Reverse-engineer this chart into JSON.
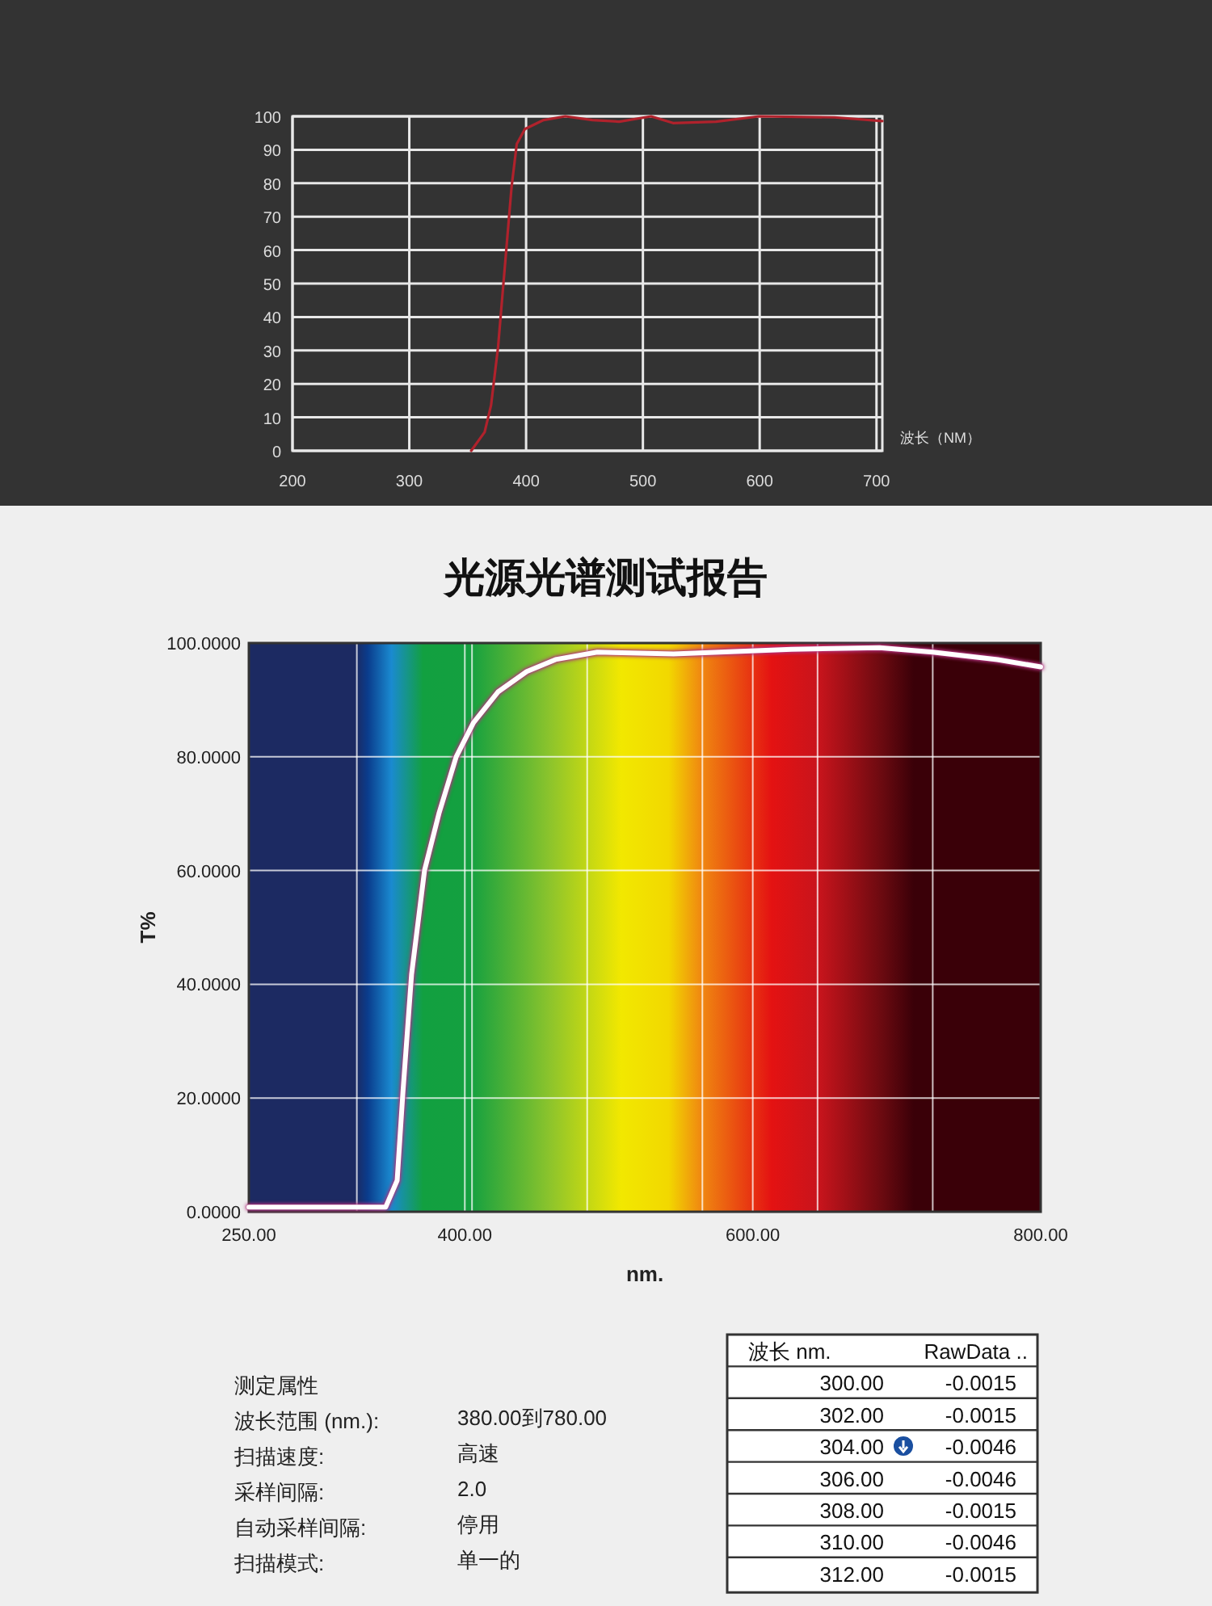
{
  "chart_data": [
    {
      "type": "line",
      "xlabel": "波长（NM）",
      "xlim": [
        200,
        705
      ],
      "ylim": [
        0,
        100
      ],
      "xticks": [
        200,
        300,
        400,
        500,
        600,
        700
      ],
      "yticks": [
        0,
        10,
        20,
        30,
        40,
        50,
        60,
        70,
        80,
        90,
        100
      ],
      "grid": true,
      "series": [
        {
          "color": "#b0222c",
          "x": [
            353,
            364.5,
            370,
            376,
            383,
            387.6,
            392,
            399,
            415,
            433.6,
            456.7,
            479.7,
            507,
            525.8,
            562.7,
            599.5,
            664,
            705
          ],
          "values": [
            0,
            5.6,
            13.6,
            31,
            60,
            79,
            91.7,
            96.2,
            98.9,
            100,
            98.9,
            98.4,
            100,
            98,
            98.4,
            100,
            99.7,
            98.6
          ]
        }
      ]
    },
    {
      "type": "line",
      "title": "光源光谱测试报告",
      "xlabel": "nm.",
      "ylabel": "T%",
      "xlim": [
        250,
        800
      ],
      "ylim": [
        0,
        100
      ],
      "xticks": [
        {
          "value": 250,
          "label": "250.00"
        },
        {
          "value": 325,
          "label": null
        },
        {
          "value": 400,
          "label": "400.00"
        },
        {
          "value": 405,
          "label": null
        },
        {
          "value": 485,
          "label": null
        },
        {
          "value": 565,
          "label": null
        },
        {
          "value": 600,
          "label": "600.00"
        },
        {
          "value": 645,
          "label": null
        },
        {
          "value": 725,
          "label": null
        },
        {
          "value": 800,
          "label": "800.00"
        }
      ],
      "yticks": [
        {
          "value": 0,
          "label": "0.0000"
        },
        {
          "value": 20,
          "label": "20.0000"
        },
        {
          "value": 40,
          "label": "40.0000"
        },
        {
          "value": 60,
          "label": "60.0000"
        },
        {
          "value": 80,
          "label": "80.0000"
        },
        {
          "value": 100,
          "label": "100.0000"
        }
      ],
      "grid": true,
      "series": [
        {
          "color": "#ffffff",
          "x": [
            250,
            345,
            353,
            357,
            363,
            372,
            382,
            394,
            406,
            423,
            443,
            463,
            492,
            545,
            627,
            688,
            725,
            770,
            800
          ],
          "values": [
            0.8,
            0.8,
            5.5,
            21,
            41.7,
            60,
            70,
            80,
            86,
            91.4,
            95,
            97.1,
            98.4,
            98.1,
            98.9,
            99.2,
            98.4,
            97.1,
            95.8
          ]
        }
      ]
    },
    {
      "type": "other",
      "annotations": [
        "测定属性",
        "波长范围 (nm.):",
        "380.00到780.00",
        "扫描速度:",
        "高速",
        "采样间隔:",
        "2.0",
        "自动采样间隔:",
        "停用",
        "扫描模式:",
        "单一的"
      ]
    },
    {
      "type": "heatmap",
      "ylabel": "波长 nm.",
      "categories": [
        "RawData .."
      ],
      "y_categories": [
        "300.00",
        "302.00",
        "304.00",
        "306.00",
        "308.00",
        "310.00",
        "312.00"
      ],
      "cells": [
        [
          -0.0015
        ],
        [
          -0.0015
        ],
        [
          -0.0046
        ],
        [
          -0.0046
        ],
        [
          -0.0015
        ],
        [
          -0.0046
        ],
        [
          -0.0015
        ]
      ],
      "data_labels": true
    }
  ]
}
